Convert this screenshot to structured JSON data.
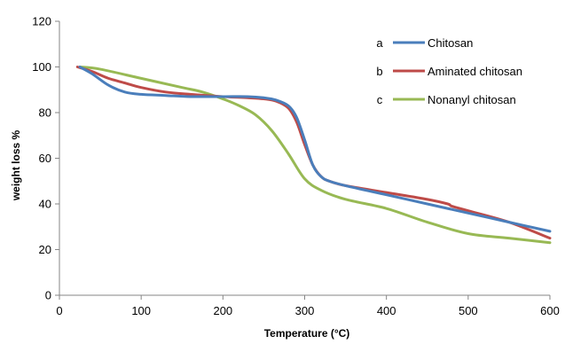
{
  "chart_data": {
    "type": "line",
    "xlabel": "Temperature (°C)",
    "ylabel": "weight loss %",
    "xlim": [
      0,
      600
    ],
    "ylim": [
      0,
      120
    ],
    "xticks": [
      0,
      100,
      200,
      300,
      400,
      500,
      600
    ],
    "yticks": [
      0,
      20,
      40,
      60,
      80,
      100,
      120
    ],
    "grid": false,
    "legend_position": "top-right",
    "series": [
      {
        "name": "Chitosan",
        "letter": "a",
        "color": "#4a7ebb",
        "x": [
          25,
          40,
          60,
          80,
          100,
          130,
          160,
          200,
          230,
          250,
          265,
          280,
          290,
          300,
          310,
          320,
          330,
          350,
          400,
          450,
          500,
          550,
          600
        ],
        "y": [
          100,
          97,
          92,
          89,
          88,
          87.5,
          87,
          87,
          87,
          86.5,
          85.5,
          83,
          78,
          68,
          57,
          52,
          50,
          48,
          44,
          40,
          36,
          32,
          28
        ]
      },
      {
        "name": "Aminated chitosan",
        "letter": "b",
        "color": "#be4b48",
        "x": [
          22,
          40,
          60,
          80,
          100,
          130,
          160,
          200,
          230,
          250,
          265,
          280,
          290,
          300,
          310,
          320,
          330,
          350,
          400,
          450,
          475,
          480,
          500,
          550,
          600
        ],
        "y": [
          100,
          98,
          95,
          93,
          91,
          89,
          88,
          87,
          86.5,
          86,
          85,
          82,
          76,
          66,
          57,
          52,
          50,
          48,
          45,
          42,
          40,
          39,
          37,
          32,
          25
        ]
      },
      {
        "name": "Nonanyl chitosan",
        "letter": "c",
        "color": "#98b954",
        "x": [
          25,
          50,
          100,
          150,
          175,
          200,
          220,
          240,
          260,
          280,
          300,
          320,
          350,
          400,
          450,
          500,
          550,
          600
        ],
        "y": [
          100,
          99,
          95,
          91,
          89,
          86,
          83,
          79,
          72,
          62,
          51,
          46,
          42,
          38,
          32,
          27,
          25,
          23
        ]
      }
    ]
  }
}
